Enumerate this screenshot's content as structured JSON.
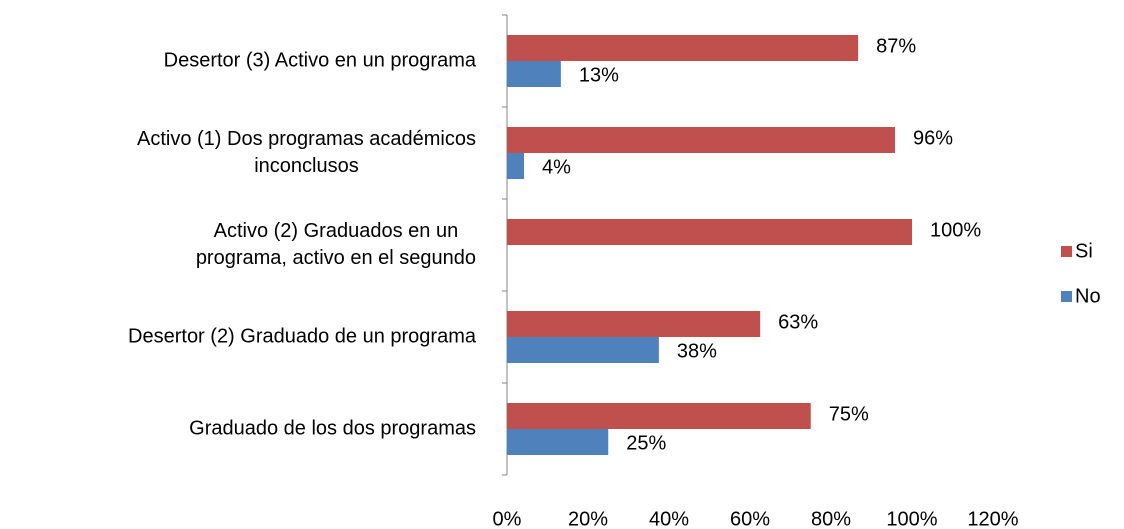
{
  "chart_data": {
    "type": "hbar",
    "categories": [
      "Desertor (3) Activo en un programa",
      "Activo (1) Dos programas académicos\ninconclusos",
      "Activo (2) Graduados en un\nprograma, activo en el segundo",
      "Desertor (2) Graduado de un programa",
      "Graduado de los dos programas"
    ],
    "series": [
      {
        "name": "Si",
        "color": "#c0504d",
        "values": [
          86.7,
          95.8,
          100,
          62.5,
          75
        ],
        "value_labels": [
          "87%",
          "96%",
          "100%",
          "63%",
          "75%"
        ]
      },
      {
        "name": "No",
        "color": "#4f81bd",
        "values": [
          13.3,
          4.2,
          null,
          37.5,
          25
        ],
        "value_labels": [
          "13%",
          "4%",
          null,
          "38%",
          "25%"
        ]
      }
    ],
    "xlim": [
      0,
      120
    ],
    "xticks": [
      {
        "value": 0,
        "label": "0%"
      },
      {
        "value": 20,
        "label": "20%"
      },
      {
        "value": 40,
        "label": "40%"
      },
      {
        "value": 60,
        "label": "60%"
      },
      {
        "value": 80,
        "label": "80%"
      },
      {
        "value": 100,
        "label": "100%"
      },
      {
        "value": 120,
        "label": "120%"
      }
    ],
    "legend": "right"
  }
}
